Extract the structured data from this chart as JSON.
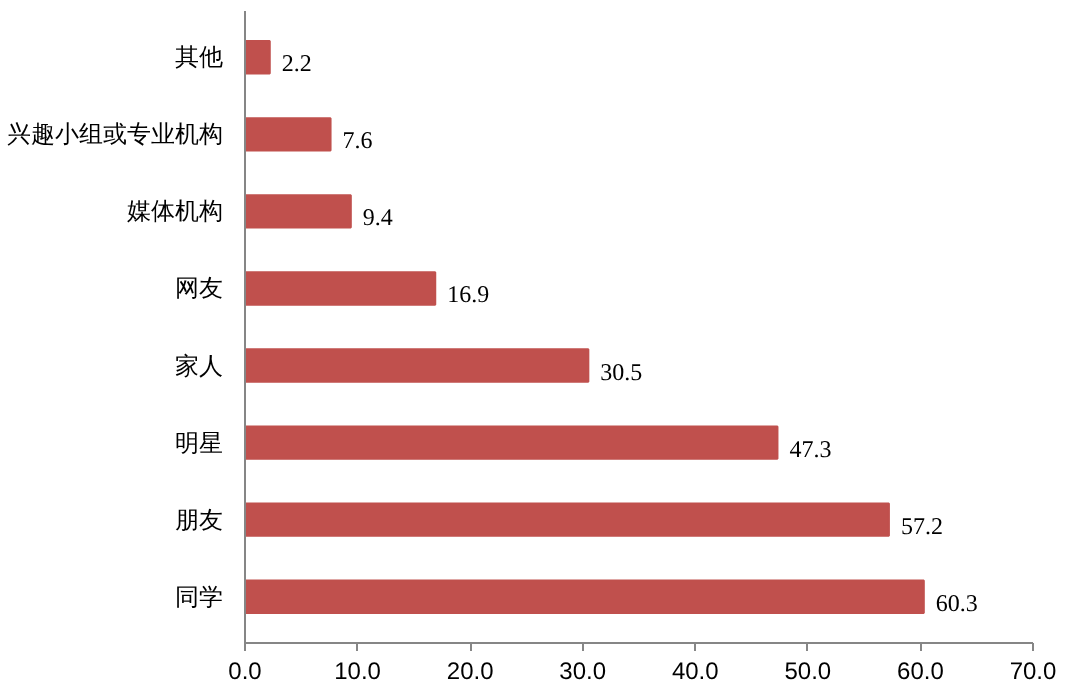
{
  "chart_data": {
    "type": "bar",
    "orientation": "horizontal",
    "categories": [
      "其他",
      "兴趣小组或专业机构",
      "媒体机构",
      "网友",
      "家人",
      "明星",
      "朋友",
      "同学"
    ],
    "values": [
      2.2,
      7.6,
      9.4,
      16.9,
      30.5,
      47.3,
      57.2,
      60.3
    ],
    "color": "#c0504d",
    "xlim": [
      0,
      70
    ],
    "xticks": [
      {
        "value": 0,
        "label": "0.0"
      },
      {
        "value": 10,
        "label": "10.0"
      },
      {
        "value": 20,
        "label": "20.0"
      },
      {
        "value": 30,
        "label": "30.0"
      },
      {
        "value": 40,
        "label": "40.0"
      },
      {
        "value": 50,
        "label": "50.0"
      },
      {
        "value": 60,
        "label": "60.0"
      },
      {
        "value": 70,
        "label": "70.0"
      }
    ],
    "grid": false,
    "data_labels": true
  }
}
